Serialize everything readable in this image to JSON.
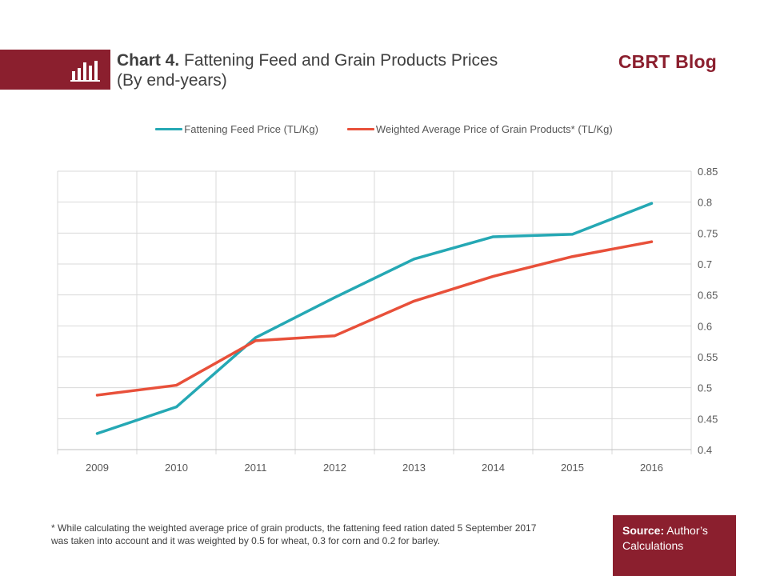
{
  "header": {
    "chart_number": "Chart 4.",
    "title": "Fattening Feed and Grain Products Prices",
    "subtitle": "(By end-years)",
    "brand": "CBRT Blog",
    "icon": "bar-chart-icon"
  },
  "colors": {
    "brand": "#8b1f2e",
    "series_feed": "#25a8b4",
    "series_grain": "#e8503a",
    "grid": "#d9d9d9",
    "axis_text": "#595959"
  },
  "chart_data": {
    "type": "line",
    "x": [
      "2009",
      "2010",
      "2011",
      "2012",
      "2013",
      "2014",
      "2015",
      "2016"
    ],
    "series": [
      {
        "name": "Fattening Feed Price (TL/Kg)",
        "values": [
          0.426,
          0.469,
          0.581,
          0.646,
          0.708,
          0.744,
          0.748,
          0.798
        ]
      },
      {
        "name": "Weighted Average Price of Grain Products* (TL/Kg)",
        "values": [
          0.488,
          0.504,
          0.576,
          0.584,
          0.64,
          0.68,
          0.712,
          0.736
        ]
      }
    ],
    "yticks": [
      "0.4",
      "0.45",
      "0.5",
      "0.55",
      "0.6",
      "0.65",
      "0.7",
      "0.75",
      "0.8",
      "0.85"
    ],
    "ylim": [
      0.4,
      0.85
    ],
    "y_axis_side": "right",
    "grid": true,
    "legend_position": "top-center"
  },
  "footnote": {
    "line1": "* While calculating the weighted average price of grain products, the fattening feed ration dated 5 September 2017",
    "line2": "was taken into account and it was weighted by 0.5 for wheat, 0.3 for corn and 0.2 for barley."
  },
  "source": {
    "label": "Source:",
    "text": "Author’s Calculations"
  }
}
